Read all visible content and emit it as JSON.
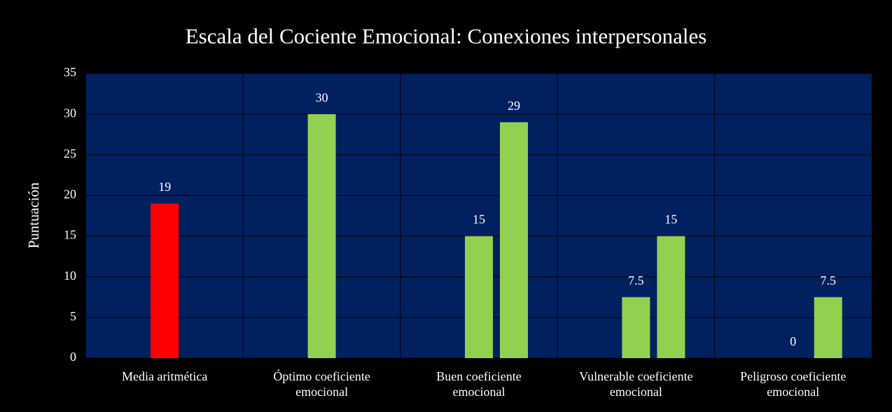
{
  "chart_data": {
    "type": "bar",
    "title": "Escala del Cociente Emocional: Conexiones interpersonales",
    "y_label": "Puntuación",
    "categories": [
      "Media aritmética",
      "Óptimo coeficiente emocional",
      "Buen coeficiente emocional",
      "Vulnerable coeficiente emocional",
      "Peligroso coeficiente emocional"
    ],
    "series": [
      {
        "colors": [
          "#ff0000",
          "#92d050",
          "#92d050",
          "#92d050",
          "#92d050"
        ],
        "values": [
          19,
          30,
          15,
          7.5,
          0
        ]
      },
      {
        "color": "#92d050",
        "values": [
          null,
          null,
          29,
          15,
          7.5
        ]
      }
    ],
    "ylim": [
      0,
      35
    ],
    "yticks": [
      0,
      5,
      10,
      15,
      20,
      25,
      30,
      35
    ],
    "grid": true
  }
}
